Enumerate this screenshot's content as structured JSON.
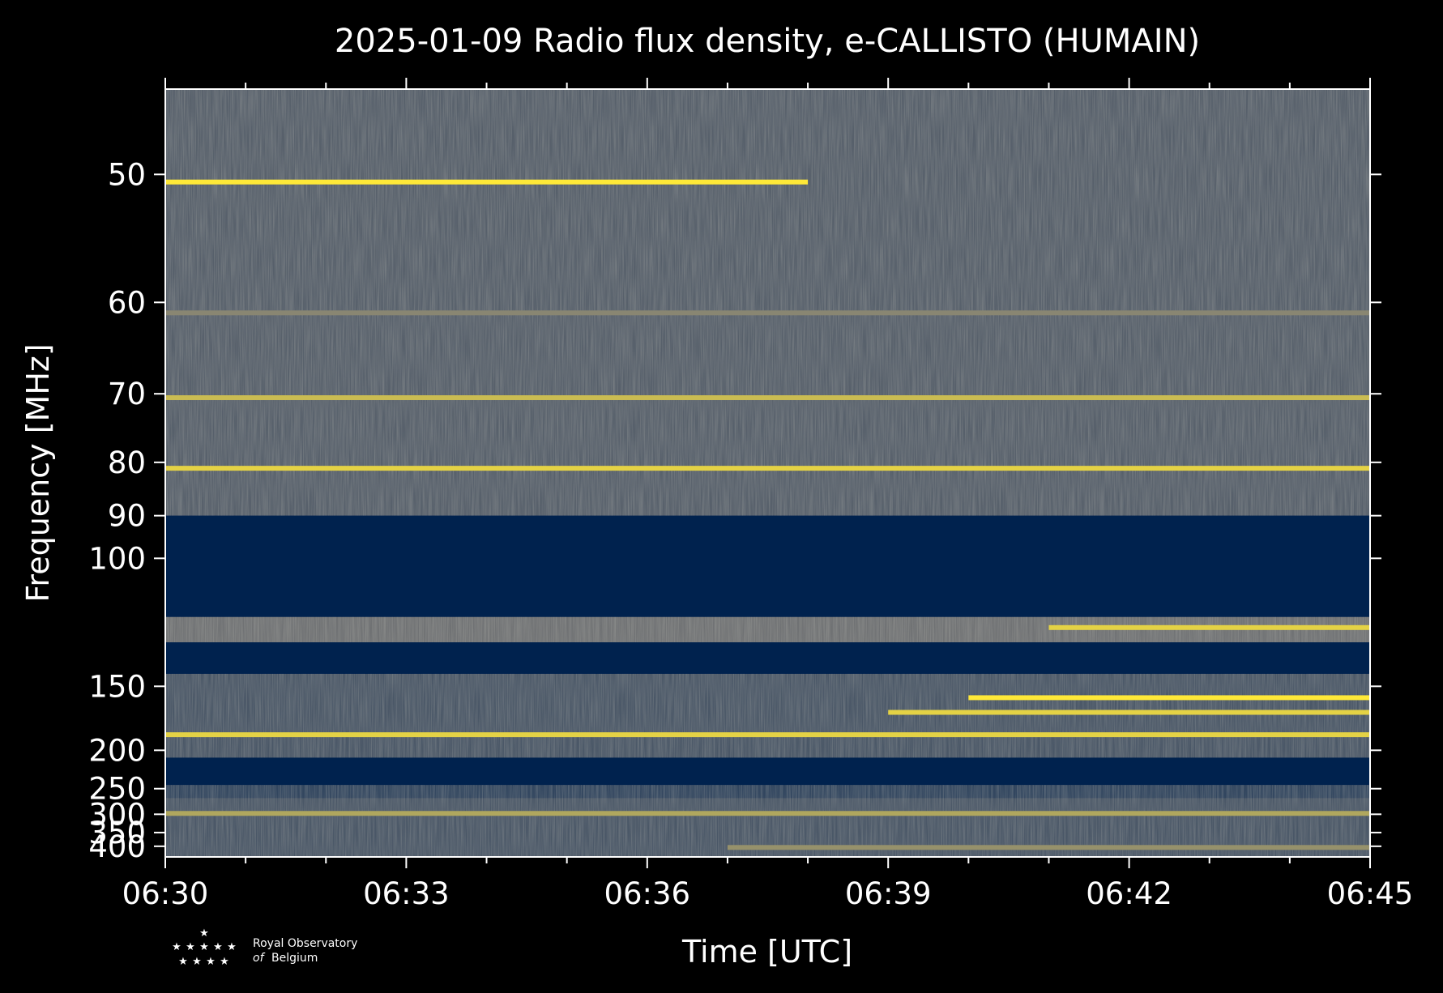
{
  "chart_data": {
    "type": "heatmap",
    "title": "2025-01-09 Radio flux density, e-CALLISTO (HUMAIN)",
    "xlabel": "Time [UTC]",
    "ylabel": "Frequency [MHz]",
    "x_ticks": [
      "06:30",
      "06:33",
      "06:36",
      "06:39",
      "06:42",
      "06:45"
    ],
    "x_range": [
      "06:30",
      "06:45"
    ],
    "y_ticks": [
      50,
      60,
      70,
      80,
      90,
      100,
      150,
      200,
      250,
      300,
      350,
      400
    ],
    "y_range": [
      45,
      450
    ],
    "y_scale": "reciprocal",
    "colormap": "cividis",
    "colors": {
      "background": "#000000",
      "low": "#00224e",
      "mid": "#7c7b78",
      "high": "#fee838",
      "text": "#ffffff"
    },
    "bands": [
      {
        "f_low": 45,
        "f_high": 90,
        "level": 0.35,
        "note": "noisy"
      },
      {
        "f_low": 90,
        "f_high": 118,
        "level": 0.0
      },
      {
        "f_low": 118,
        "f_high": 128,
        "level": 0.45
      },
      {
        "f_low": 128,
        "f_high": 143,
        "level": 0.0
      },
      {
        "f_low": 143,
        "f_high": 208,
        "level": 0.3
      },
      {
        "f_low": 208,
        "f_high": 244,
        "level": 0.0
      },
      {
        "f_low": 244,
        "f_high": 266,
        "level": 0.2
      },
      {
        "f_low": 266,
        "f_high": 450,
        "level": 0.3
      }
    ],
    "bright_lines": [
      {
        "freq": 50.5,
        "level": 1.0,
        "t_start": "06:30",
        "t_end": "06:38"
      },
      {
        "freq": 61,
        "level": 0.55,
        "t_start": "06:30",
        "t_end": "06:45"
      },
      {
        "freq": 70.5,
        "level": 0.8,
        "t_start": "06:30",
        "t_end": "06:45"
      },
      {
        "freq": 81,
        "level": 0.9,
        "t_start": "06:30",
        "t_end": "06:45"
      },
      {
        "freq": 122,
        "level": 0.9,
        "t_start": "06:41",
        "t_end": "06:45"
      },
      {
        "freq": 157,
        "level": 1.0,
        "t_start": "06:40",
        "t_end": "06:45"
      },
      {
        "freq": 167,
        "level": 0.9,
        "t_start": "06:39",
        "t_end": "06:45"
      },
      {
        "freq": 185,
        "level": 0.9,
        "t_start": "06:30",
        "t_end": "06:45"
      },
      {
        "freq": 298,
        "level": 0.7,
        "t_start": "06:30",
        "t_end": "06:45"
      },
      {
        "freq": 405,
        "level": 0.6,
        "t_start": "06:37",
        "t_end": "06:45"
      }
    ]
  },
  "logo": {
    "line1": "Royal Observatory",
    "line2_italic": "of",
    "line2": "Belgium"
  }
}
